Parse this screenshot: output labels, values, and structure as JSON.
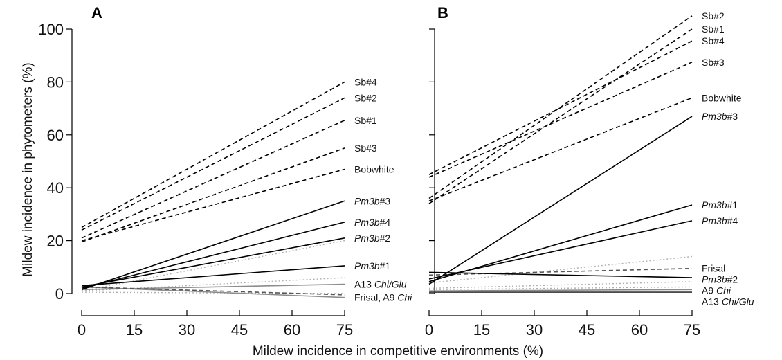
{
  "chart_data": [
    {
      "type": "line",
      "panel": "A",
      "xlabel": "Mildew incidence in competitive environments (%)",
      "ylabel": "Mildew incidence in phytometers (%)",
      "xlim": [
        0,
        75
      ],
      "ylim": [
        0,
        100
      ],
      "xticks": [
        0,
        15,
        30,
        45,
        60,
        75
      ],
      "yticks": [
        0,
        20,
        40,
        60,
        80,
        100
      ],
      "series": [
        {
          "label": "Sb#4",
          "label_parts": [
            {
              "t": "Sb#4",
              "i": false
            }
          ],
          "style": "dashed",
          "color": "#000000",
          "x": [
            0,
            75
          ],
          "y": [
            25,
            80
          ]
        },
        {
          "label": "Sb#2",
          "label_parts": [
            {
              "t": "Sb#2",
              "i": false
            }
          ],
          "style": "dashed",
          "color": "#000000",
          "x": [
            0,
            75
          ],
          "y": [
            24,
            74
          ]
        },
        {
          "label": "Sb#1",
          "label_parts": [
            {
              "t": "Sb#1",
              "i": false
            }
          ],
          "style": "dashed",
          "color": "#000000",
          "x": [
            0,
            75
          ],
          "y": [
            21,
            65.5
          ]
        },
        {
          "label": "Sb#3",
          "label_parts": [
            {
              "t": "Sb#3",
              "i": false
            }
          ],
          "style": "dashed",
          "color": "#000000",
          "x": [
            0,
            75
          ],
          "y": [
            19.5,
            55
          ]
        },
        {
          "label": "Bobwhite",
          "label_parts": [
            {
              "t": "Bobwhite",
              "i": false
            }
          ],
          "style": "dashed",
          "color": "#000000",
          "x": [
            0,
            75
          ],
          "y": [
            20,
            47
          ]
        },
        {
          "label": "Pm3b#3",
          "label_parts": [
            {
              "t": "Pm3b",
              "i": true
            },
            {
              "t": "#3",
              "i": false
            }
          ],
          "style": "solid",
          "color": "#000000",
          "x": [
            0,
            75
          ],
          "y": [
            1.5,
            35
          ]
        },
        {
          "label": "Pm3b#4",
          "label_parts": [
            {
              "t": "Pm3b",
              "i": true
            },
            {
              "t": "#4",
              "i": false
            }
          ],
          "style": "solid",
          "color": "#000000",
          "x": [
            0,
            75
          ],
          "y": [
            2,
            27
          ]
        },
        {
          "label": "Pm3b#2",
          "label_parts": [
            {
              "t": "Pm3b",
              "i": true
            },
            {
              "t": "#2",
              "i": false
            }
          ],
          "style": "solid",
          "color": "#000000",
          "x": [
            0,
            75
          ],
          "y": [
            2.5,
            21
          ]
        },
        {
          "label": "Pm3b#1",
          "label_parts": [
            {
              "t": "Pm3b",
              "i": true
            },
            {
              "t": "#1",
              "i": false
            }
          ],
          "style": "solid",
          "color": "#000000",
          "x": [
            0,
            75
          ],
          "y": [
            3,
            10.5
          ]
        },
        {
          "label": "A13 Chi/Glu",
          "label_parts": [
            {
              "t": "A13 ",
              "i": false
            },
            {
              "t": "Chi/Glu",
              "i": true
            }
          ],
          "style": "solid",
          "color": "#8c8c8c",
          "x": [
            0,
            75
          ],
          "y": [
            1.5,
            3.5
          ]
        },
        {
          "label": "Frisal, A9 Chi",
          "label_parts": [
            {
              "t": "Frisal, A9 ",
              "i": false
            },
            {
              "t": "Chi",
              "i": true
            }
          ],
          "style": "solid",
          "color": "#8c8c8c",
          "x": [
            0,
            75
          ],
          "y": [
            2.5,
            -1.5
          ]
        },
        {
          "label": "",
          "style": "dashed",
          "color": "#555555",
          "x": [
            0,
            75
          ],
          "y": [
            2.5,
            -0.5
          ]
        },
        {
          "label": "",
          "style": "dotted",
          "color": "#b0b0b0",
          "x": [
            0,
            75
          ],
          "y": [
            1,
            6
          ]
        },
        {
          "label": "",
          "style": "dotted",
          "color": "#b0b0b0",
          "x": [
            0,
            75
          ],
          "y": [
            1,
            20
          ]
        },
        {
          "label": "",
          "style": "dotted",
          "color": "#b0b0b0",
          "x": [
            0,
            75
          ],
          "y": [
            0.5,
            0
          ]
        }
      ]
    },
    {
      "type": "line",
      "panel": "B",
      "xlim": [
        0,
        75
      ],
      "ylim": [
        0,
        100
      ],
      "xticks": [
        0,
        15,
        30,
        45,
        60,
        75
      ],
      "yticks": [
        0,
        20,
        40,
        60,
        80,
        100
      ],
      "series": [
        {
          "label": "Sb#2",
          "label_parts": [
            {
              "t": "Sb#2",
              "i": false
            }
          ],
          "style": "dashed",
          "color": "#000000",
          "x": [
            0,
            75
          ],
          "y": [
            36,
            105
          ]
        },
        {
          "label": "Sb#1",
          "label_parts": [
            {
              "t": "Sb#1",
              "i": false
            }
          ],
          "style": "dashed",
          "color": "#000000",
          "x": [
            0,
            75
          ],
          "y": [
            34,
            100
          ]
        },
        {
          "label": "Sb#4",
          "label_parts": [
            {
              "t": "Sb#4",
              "i": false
            }
          ],
          "style": "dashed",
          "color": "#000000",
          "x": [
            0,
            75
          ],
          "y": [
            45,
            95.5
          ]
        },
        {
          "label": "Sb#3",
          "label_parts": [
            {
              "t": "Sb#3",
              "i": false
            }
          ],
          "style": "dashed",
          "color": "#000000",
          "x": [
            0,
            75
          ],
          "y": [
            44,
            87.5
          ]
        },
        {
          "label": "Bobwhite",
          "label_parts": [
            {
              "t": "Bobwhite",
              "i": false
            }
          ],
          "style": "dashed",
          "color": "#000000",
          "x": [
            0,
            75
          ],
          "y": [
            35,
            74
          ]
        },
        {
          "label": "Pm3b#3",
          "label_parts": [
            {
              "t": "Pm3b",
              "i": true
            },
            {
              "t": "#3",
              "i": false
            }
          ],
          "style": "solid",
          "color": "#000000",
          "x": [
            0,
            75
          ],
          "y": [
            3.5,
            67
          ]
        },
        {
          "label": "Pm3b#1",
          "label_parts": [
            {
              "t": "Pm3b",
              "i": true
            },
            {
              "t": "#1",
              "i": false
            }
          ],
          "style": "solid",
          "color": "#000000",
          "x": [
            0,
            75
          ],
          "y": [
            4.5,
            33.5
          ]
        },
        {
          "label": "Pm3b#4",
          "label_parts": [
            {
              "t": "Pm3b",
              "i": true
            },
            {
              "t": "#4",
              "i": false
            }
          ],
          "style": "solid",
          "color": "#000000",
          "x": [
            0,
            75
          ],
          "y": [
            5.5,
            27.5
          ]
        },
        {
          "label": "Frisal",
          "label_parts": [
            {
              "t": "Frisal",
              "i": false
            }
          ],
          "style": "dashed",
          "color": "#555555",
          "x": [
            0,
            75
          ],
          "y": [
            7,
            9.5
          ]
        },
        {
          "label": "Pm3b#2",
          "label_parts": [
            {
              "t": "Pm3b",
              "i": true
            },
            {
              "t": "#2",
              "i": false
            }
          ],
          "style": "solid",
          "color": "#000000",
          "x": [
            0,
            75
          ],
          "y": [
            8,
            6
          ]
        },
        {
          "label": "A9 Chi",
          "label_parts": [
            {
              "t": "A9 ",
              "i": false
            },
            {
              "t": "Chi",
              "i": true
            }
          ],
          "style": "solid",
          "color": "#8c8c8c",
          "x": [
            0,
            75
          ],
          "y": [
            1,
            1.5
          ]
        },
        {
          "label": "A13 Chi/Glu",
          "label_parts": [
            {
              "t": "A13 ",
              "i": false
            },
            {
              "t": "Chi/Glu",
              "i": true
            }
          ],
          "style": "solid",
          "color": "#333333",
          "x": [
            0,
            75
          ],
          "y": [
            0.5,
            0.5
          ]
        },
        {
          "label": "",
          "style": "dotted",
          "color": "#b0b0b0",
          "x": [
            0,
            75
          ],
          "y": [
            4,
            14
          ]
        },
        {
          "label": "",
          "style": "dotted",
          "color": "#b0b0b0",
          "x": [
            0,
            75
          ],
          "y": [
            2,
            4.5
          ]
        },
        {
          "label": "",
          "style": "dotted",
          "color": "#b0b0b0",
          "x": [
            0,
            75
          ],
          "y": [
            1.5,
            2.5
          ]
        }
      ]
    }
  ]
}
